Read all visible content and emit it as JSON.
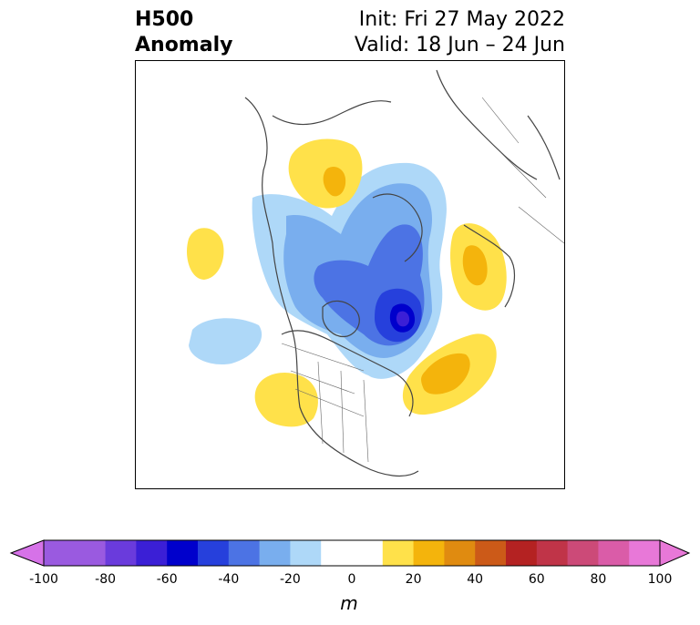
{
  "title": {
    "left_line1": "H500",
    "left_line2": "Anomaly",
    "right_line1": "Init: Fri 27 May 2022",
    "right_line2": "Valid: 18 Jun – 24 Jun"
  },
  "map": {
    "projection": "north-polar-stereographic",
    "field": "500 hPa geopotential height anomaly"
  },
  "colorbar": {
    "unit": "m",
    "extend": "both",
    "tick_labels": [
      "-100",
      "-80",
      "-60",
      "-40",
      "-20",
      "0",
      "20",
      "40",
      "60",
      "80",
      "100"
    ],
    "bins": [
      {
        "from": -100,
        "to": -90,
        "color": "#9a5ae0"
      },
      {
        "from": -90,
        "to": -80,
        "color": "#9a5ae0"
      },
      {
        "from": -80,
        "to": -70,
        "color": "#6a3bdc"
      },
      {
        "from": -70,
        "to": -60,
        "color": "#3b1fd6"
      },
      {
        "from": -60,
        "to": -50,
        "color": "#0000cc"
      },
      {
        "from": -50,
        "to": -40,
        "color": "#2640dc"
      },
      {
        "from": -40,
        "to": -30,
        "color": "#4c73e4"
      },
      {
        "from": -30,
        "to": -20,
        "color": "#79aeee"
      },
      {
        "from": -20,
        "to": -10,
        "color": "#aed8f8"
      },
      {
        "from": -10,
        "to": 10,
        "color": "#ffffff"
      },
      {
        "from": 10,
        "to": 20,
        "color": "#ffe14a"
      },
      {
        "from": 20,
        "to": 30,
        "color": "#f4b40c"
      },
      {
        "from": 30,
        "to": 40,
        "color": "#e08b10"
      },
      {
        "from": 40,
        "to": 50,
        "color": "#cc5a18"
      },
      {
        "from": 50,
        "to": 60,
        "color": "#b42222"
      },
      {
        "from": 60,
        "to": 70,
        "color": "#c03448"
      },
      {
        "from": 70,
        "to": 80,
        "color": "#cc4a78"
      },
      {
        "from": 80,
        "to": 90,
        "color": "#da5ca8"
      },
      {
        "from": 90,
        "to": 100,
        "color": "#e878d8"
      }
    ],
    "under_color": "#d672e8",
    "over_color": "#e878d8"
  }
}
